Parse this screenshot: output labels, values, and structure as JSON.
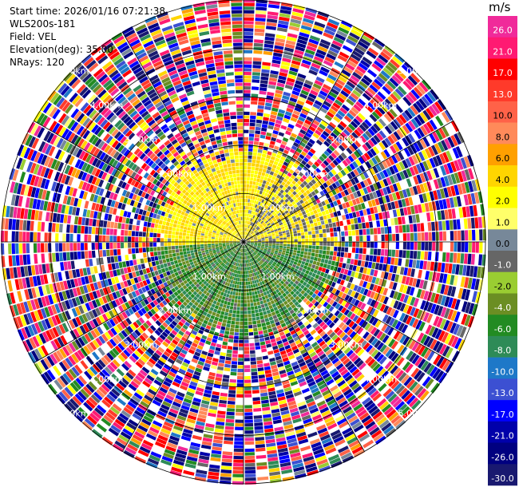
{
  "header": {
    "start_time": "Start time: 2026/01/16 07:21:38",
    "instrument": "WLS200s-181",
    "field": "Field: VEL",
    "elevation": "Elevation(deg): 35.00",
    "nrays": "NRays: 120"
  },
  "colorbar": {
    "unit": "m/s",
    "bins": [
      {
        "label": "26.0",
        "color": "#f02a9a"
      },
      {
        "label": "21.0",
        "color": "#ff1a72"
      },
      {
        "label": "17.0",
        "color": "#ff0000"
      },
      {
        "label": "13.0",
        "color": "#ff3a2a"
      },
      {
        "label": "10.0",
        "color": "#ff6248"
      },
      {
        "label": "8.0",
        "color": "#ff8a5a"
      },
      {
        "label": "6.0",
        "color": "#ffa000"
      },
      {
        "label": "4.0",
        "color": "#ffd500"
      },
      {
        "label": "2.0",
        "color": "#ffff00"
      },
      {
        "label": "1.0",
        "color": "#ffff6a"
      },
      {
        "label": "0.0",
        "color": "#778899"
      },
      {
        "label": "-1.0",
        "color": "#666666"
      },
      {
        "label": "-2.0",
        "color": "#9acd32"
      },
      {
        "label": "-4.0",
        "color": "#6b8e23"
      },
      {
        "label": "-6.0",
        "color": "#228b22"
      },
      {
        "label": "-8.0",
        "color": "#2e8b57"
      },
      {
        "label": "-10.0",
        "color": "#1e78c8"
      },
      {
        "label": "-13.0",
        "color": "#3c50d2"
      },
      {
        "label": "-17.0",
        "color": "#0000ff"
      },
      {
        "label": "-21.0",
        "color": "#0000aa"
      },
      {
        "label": "-26.0",
        "color": "#000080"
      },
      {
        "label": "-30.0",
        "color": "#191970"
      }
    ]
  },
  "chart_data": {
    "type": "heatmap",
    "projection": "polar-ppi",
    "field": "VEL",
    "units": "m/s",
    "elevation_deg": 35.0,
    "n_rays": 120,
    "ring_labels": [
      "1.00km",
      "2.00km",
      "3.00km",
      "4.00km",
      "5.00km"
    ],
    "ring_label_directions": [
      "NE",
      "SE",
      "SW",
      "NW"
    ],
    "max_range_km": 5.0,
    "gate_length_km": 0.075,
    "valid_region": {
      "max_range_km": 2.0,
      "northern_half_pattern": "positive velocities 2-6 m/s (yellow/orange), with 0 to -1 m/s grey pockets near the east",
      "southern_half_pattern": "negative velocities -2 to -8 m/s (greens)"
    },
    "beyond_valid_region": "noise: random velocities across the full -30 to 26 m/s scale",
    "grid": true
  }
}
